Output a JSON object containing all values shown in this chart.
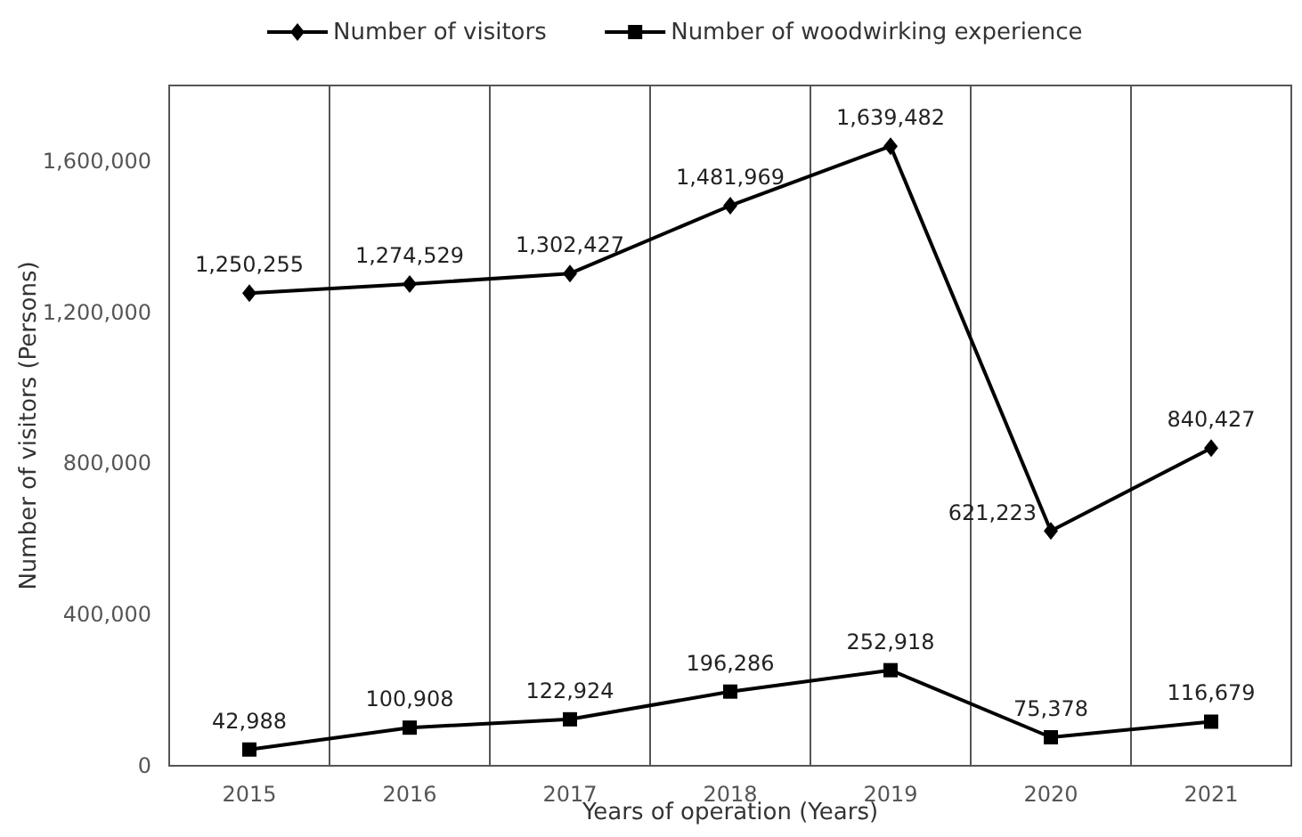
{
  "chart_data": {
    "type": "line",
    "xlabel": "Years of operation (Years)",
    "ylabel": "Number of visitors (Persons)",
    "categories": [
      "2015",
      "2016",
      "2017",
      "2018",
      "2019",
      "2020",
      "2021"
    ],
    "series": [
      {
        "name": "Number of visitors",
        "color": "#000000",
        "marker": "diamond",
        "values": [
          1250255,
          1274529,
          1302427,
          1481969,
          1639482,
          621223,
          840427
        ],
        "value_labels": [
          "1,250,255",
          "1,274,529",
          "1,302,427",
          "1,481,969",
          "1,639,482",
          "621,223",
          "840,427"
        ]
      },
      {
        "name": "Number of woodwirking experience",
        "color": "#000000",
        "marker": "square",
        "values": [
          42988,
          100908,
          122924,
          196286,
          252918,
          75378,
          116679
        ],
        "value_labels": [
          "42,988",
          "100,908",
          "122,924",
          "196,286",
          "252,918",
          "75,378",
          "116,679"
        ]
      }
    ],
    "ylim": [
      0,
      1800000
    ],
    "yticks": [
      {
        "value": 0,
        "label": "0"
      },
      {
        "value": 400000,
        "label": "400,000"
      },
      {
        "value": 800000,
        "label": "800,000"
      },
      {
        "value": 1200000,
        "label": "1,200,000"
      },
      {
        "value": 1600000,
        "label": "1,600,000"
      }
    ],
    "grid": "x",
    "legend": "top",
    "line_style": "solid"
  }
}
